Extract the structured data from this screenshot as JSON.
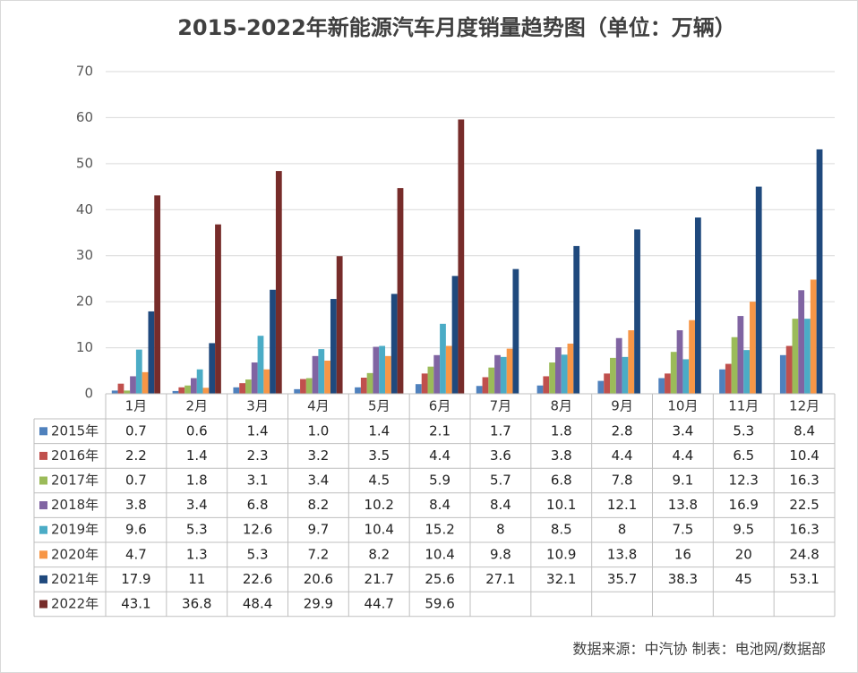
{
  "chart_data": {
    "type": "bar",
    "title": "2015-2022年新能源汽车月度销量趋势图（单位：万辆）",
    "source": "数据来源：中汽协 制表：电池网/数据部",
    "categories": [
      "1月",
      "2月",
      "3月",
      "4月",
      "5月",
      "6月",
      "7月",
      "8月",
      "9月",
      "10月",
      "11月",
      "12月"
    ],
    "ylim": [
      0,
      70
    ],
    "yticks": [
      0,
      10,
      20,
      30,
      40,
      50,
      60,
      70
    ],
    "grid": true,
    "series": [
      {
        "name": "2015年",
        "color": "#4f81bd",
        "values": [
          0.7,
          0.6,
          1.4,
          1.0,
          1.4,
          2.1,
          1.7,
          1.8,
          2.8,
          3.4,
          5.3,
          8.4
        ],
        "value_labels": [
          "0.7",
          "0.6",
          "1.4",
          "1.0",
          "1.4",
          "2.1",
          "1.7",
          "1.8",
          "2.8",
          "3.4",
          "5.3",
          "8.4"
        ]
      },
      {
        "name": "2016年",
        "color": "#c0504d",
        "values": [
          2.2,
          1.4,
          2.3,
          3.2,
          3.5,
          4.4,
          3.6,
          3.8,
          4.4,
          4.4,
          6.5,
          10.4
        ]
      },
      {
        "name": "2017年",
        "color": "#9bbb59",
        "values": [
          0.7,
          1.8,
          3.1,
          3.4,
          4.5,
          5.9,
          5.7,
          6.8,
          7.8,
          9.1,
          12.3,
          16.3
        ]
      },
      {
        "name": "2018年",
        "color": "#8064a2",
        "values": [
          3.8,
          3.4,
          6.8,
          8.2,
          10.2,
          8.4,
          8.4,
          10.1,
          12.1,
          13.8,
          16.9,
          22.5
        ]
      },
      {
        "name": "2019年",
        "color": "#4bacc6",
        "values": [
          9.6,
          5.3,
          12.6,
          9.7,
          10.4,
          15.2,
          8,
          8.5,
          8,
          7.5,
          9.5,
          16.3
        ]
      },
      {
        "name": "2020年",
        "color": "#f79646",
        "values": [
          4.7,
          1.3,
          5.3,
          7.2,
          8.2,
          10.4,
          9.8,
          10.9,
          13.8,
          16,
          20,
          24.8
        ]
      },
      {
        "name": "2021年",
        "color": "#1f497d",
        "values": [
          17.9,
          11,
          22.6,
          20.6,
          21.7,
          25.6,
          27.1,
          32.1,
          35.7,
          38.3,
          45,
          53.1
        ]
      },
      {
        "name": "2022年",
        "color": "#772c2a",
        "values": [
          43.1,
          36.8,
          48.4,
          29.9,
          44.7,
          59.6,
          null,
          null,
          null,
          null,
          null,
          null
        ]
      }
    ]
  }
}
